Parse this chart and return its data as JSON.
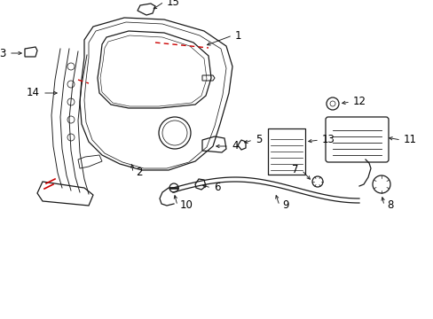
{
  "bg_color": "#ffffff",
  "lc": "#1a1a1a",
  "rc": "#cc0000",
  "fig_w": 4.89,
  "fig_h": 3.6,
  "dpi": 100
}
